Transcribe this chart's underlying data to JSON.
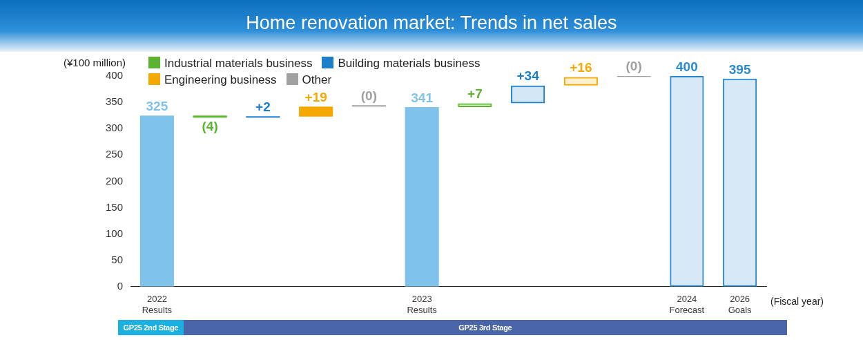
{
  "chart_data": {
    "type": "bar",
    "title": "Home renovation market: Trends in net sales",
    "ylabel": "(¥100 million)",
    "xlabel": "(Fiscal year)",
    "categories": [
      "2022\nResults",
      null,
      null,
      null,
      null,
      "2023\nResults",
      null,
      null,
      null,
      null,
      "2024\nForecast",
      "2026\nGoals"
    ],
    "series": [
      {
        "color": "#7fc2ea",
        "values": [
          325,
          null,
          null,
          null,
          null,
          341,
          null,
          null,
          null,
          null,
          null,
          null
        ],
        "value_labels": [
          "325",
          null,
          null,
          null,
          null,
          "341",
          null,
          null,
          null,
          null,
          null,
          null
        ]
      },
      {
        "name": "Industrial materials business",
        "color": "#5ab431",
        "base": [
          null,
          325,
          null,
          null,
          null,
          null,
          null,
          null,
          null,
          null,
          null,
          null
        ],
        "values": [
          null,
          -4,
          null,
          null,
          null,
          null,
          null,
          null,
          null,
          null,
          null,
          null
        ],
        "value_labels": [
          null,
          "(4)",
          null,
          null,
          null,
          null,
          null,
          null,
          null,
          null,
          null,
          null
        ]
      },
      {
        "name": "Building materials business",
        "color": "#1a7fc8",
        "base": [
          null,
          null,
          321,
          null,
          null,
          null,
          null,
          null,
          null,
          null,
          null,
          null
        ],
        "values": [
          null,
          null,
          2,
          null,
          null,
          null,
          null,
          null,
          null,
          null,
          null,
          null
        ],
        "value_labels": [
          null,
          null,
          "+2",
          null,
          null,
          null,
          null,
          null,
          null,
          null,
          null,
          null
        ]
      },
      {
        "name": "Engineering business",
        "color": "#f5a800",
        "base": [
          null,
          null,
          null,
          323,
          null,
          null,
          null,
          null,
          null,
          null,
          null,
          null
        ],
        "values": [
          null,
          null,
          null,
          19,
          null,
          null,
          null,
          null,
          null,
          null,
          null,
          null
        ],
        "value_labels": [
          null,
          null,
          null,
          "+19",
          null,
          null,
          null,
          null,
          null,
          null,
          null,
          null
        ]
      },
      {
        "name": "Other",
        "color": "#a0a0a0",
        "base": [
          null,
          null,
          null,
          null,
          342,
          null,
          null,
          null,
          null,
          null,
          null,
          null
        ],
        "values": [
          null,
          null,
          null,
          null,
          0,
          null,
          null,
          null,
          null,
          null,
          null,
          null
        ],
        "value_labels": [
          null,
          null,
          null,
          null,
          "(0)",
          null,
          null,
          null,
          null,
          null,
          null,
          null
        ]
      },
      {
        "color": "#5ab431",
        "line_style": "dashed",
        "base": [
          null,
          null,
          null,
          null,
          null,
          null,
          341,
          null,
          null,
          null,
          null,
          null
        ],
        "values": [
          null,
          null,
          null,
          null,
          null,
          null,
          7,
          null,
          null,
          null,
          null,
          null
        ],
        "value_labels": [
          null,
          null,
          null,
          null,
          null,
          null,
          "+7",
          null,
          null,
          null,
          null,
          null
        ]
      },
      {
        "color": "#1a7fc8",
        "line_style": "dashed",
        "base": [
          null,
          null,
          null,
          null,
          null,
          null,
          null,
          348,
          null,
          null,
          null,
          null
        ],
        "values": [
          null,
          null,
          null,
          null,
          null,
          null,
          null,
          34,
          null,
          null,
          null,
          null
        ],
        "value_labels": [
          null,
          null,
          null,
          null,
          null,
          null,
          null,
          "+34",
          null,
          null,
          null,
          null
        ]
      },
      {
        "color": "#f5a800",
        "line_style": "dashed",
        "base": [
          null,
          null,
          null,
          null,
          null,
          null,
          null,
          null,
          382,
          null,
          null,
          null
        ],
        "values": [
          null,
          null,
          null,
          null,
          null,
          null,
          null,
          null,
          16,
          null,
          null,
          null
        ],
        "value_labels": [
          null,
          null,
          null,
          null,
          null,
          null,
          null,
          null,
          "+16",
          null,
          null,
          null
        ]
      },
      {
        "color": "#a0a0a0",
        "line_style": "dashed",
        "base": [
          null,
          null,
          null,
          null,
          null,
          null,
          null,
          null,
          null,
          398,
          null,
          null
        ],
        "values": [
          null,
          null,
          null,
          null,
          null,
          null,
          null,
          null,
          null,
          0,
          null,
          null
        ],
        "value_labels": [
          null,
          null,
          null,
          null,
          null,
          null,
          null,
          null,
          null,
          "(0)",
          null,
          null
        ]
      },
      {
        "color": "#2a8ad0",
        "line_style": "dashed",
        "values": [
          null,
          null,
          null,
          null,
          null,
          null,
          null,
          null,
          null,
          null,
          400,
          395
        ],
        "value_labels": [
          null,
          null,
          null,
          null,
          null,
          null,
          null,
          null,
          null,
          null,
          "400",
          "395"
        ]
      }
    ],
    "ylim": [
      0,
      400
    ],
    "yticks": [
      0,
      50,
      100,
      150,
      200,
      250,
      300,
      350,
      400
    ],
    "grid": false,
    "legend": "top left",
    "annotations": [
      "GP25 2nd Stage",
      "GP25 3rd Stage"
    ]
  }
}
